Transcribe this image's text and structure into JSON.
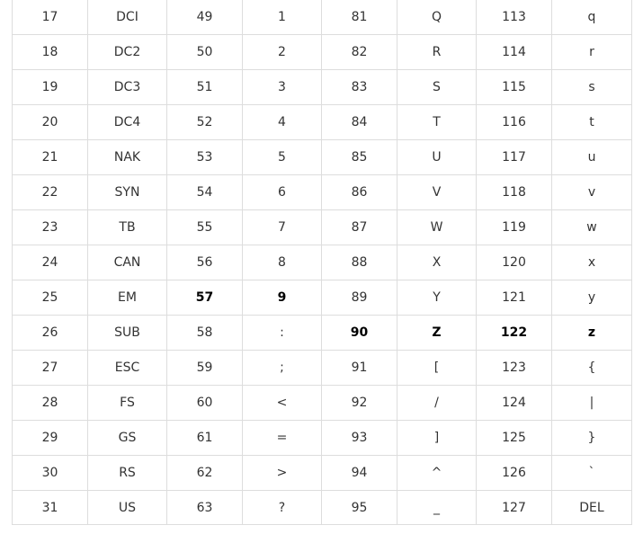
{
  "table": {
    "rows": [
      [
        "17",
        "DCI",
        "49",
        "1",
        "81",
        "Q",
        "113",
        "q"
      ],
      [
        "18",
        "DC2",
        "50",
        "2",
        "82",
        "R",
        "114",
        "r"
      ],
      [
        "19",
        "DC3",
        "51",
        "3",
        "83",
        "S",
        "115",
        "s"
      ],
      [
        "20",
        "DC4",
        "52",
        "4",
        "84",
        "T",
        "116",
        "t"
      ],
      [
        "21",
        "NAK",
        "53",
        "5",
        "85",
        "U",
        "117",
        "u"
      ],
      [
        "22",
        "SYN",
        "54",
        "6",
        "86",
        "V",
        "118",
        "v"
      ],
      [
        "23",
        "TB",
        "55",
        "7",
        "87",
        "W",
        "119",
        "w"
      ],
      [
        "24",
        "CAN",
        "56",
        "8",
        "88",
        "X",
        "120",
        "x"
      ],
      [
        "25",
        "EM",
        "57",
        "9",
        "89",
        "Y",
        "121",
        "y"
      ],
      [
        "26",
        "SUB",
        "58",
        ":",
        "90",
        "Z",
        "122",
        "z"
      ],
      [
        "27",
        "ESC",
        "59",
        ";",
        "91",
        "[",
        "123",
        "{"
      ],
      [
        "28",
        "FS",
        "60",
        "<",
        "92",
        "/",
        "124",
        "|"
      ],
      [
        "29",
        "GS",
        "61",
        "=",
        "93",
        "]",
        "125",
        "}"
      ],
      [
        "30",
        "RS",
        "62",
        ">",
        "94",
        "^",
        "126",
        "`"
      ],
      [
        "31",
        "US",
        "63",
        "?",
        "95",
        "_",
        "127",
        "DEL"
      ]
    ],
    "bold_cells": [
      [
        8,
        2
      ],
      [
        8,
        3
      ],
      [
        9,
        4
      ],
      [
        9,
        5
      ],
      [
        9,
        6
      ],
      [
        9,
        7
      ]
    ]
  }
}
